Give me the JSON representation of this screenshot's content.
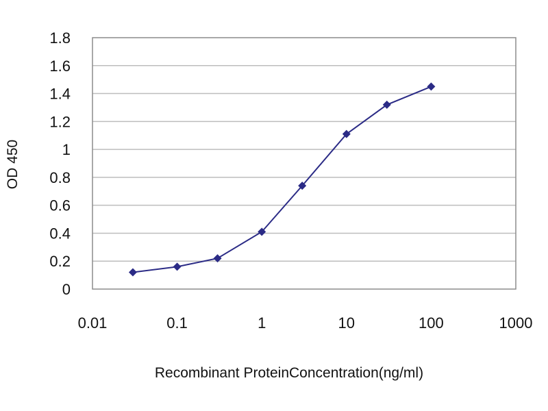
{
  "chart_data": {
    "type": "line",
    "title": "",
    "xlabel": "Recombinant ProteinConcentration(ng/ml)",
    "ylabel": "OD 450",
    "xscale": "log",
    "xlim": [
      0.01,
      1000
    ],
    "ylim": [
      0,
      1.8
    ],
    "x_tick_labels": [
      "0.01",
      "0.1",
      "1",
      "10",
      "100",
      "1000"
    ],
    "x_tick_values": [
      0.01,
      0.1,
      1,
      10,
      100,
      1000
    ],
    "y_tick_labels": [
      "0",
      "0.2",
      "0.4",
      "0.6",
      "0.8",
      "1",
      "1.2",
      "1.4",
      "1.6",
      "1.8"
    ],
    "y_tick_values": [
      0,
      0.2,
      0.4,
      0.6,
      0.8,
      1,
      1.2,
      1.4,
      1.6,
      1.8
    ],
    "grid": "horizontal",
    "legend": "none",
    "series": [
      {
        "x": [
          0.03,
          0.1,
          0.3,
          1,
          3,
          10,
          30,
          100
        ],
        "y": [
          0.12,
          0.16,
          0.22,
          0.41,
          0.74,
          1.11,
          1.32,
          1.45
        ],
        "color": "#2b2b86",
        "marker": "diamond"
      }
    ],
    "colors": {
      "series": "#2b2b86",
      "grid": "#bdbdbd",
      "frame": "#8c8c8c",
      "text": "#111111"
    }
  }
}
